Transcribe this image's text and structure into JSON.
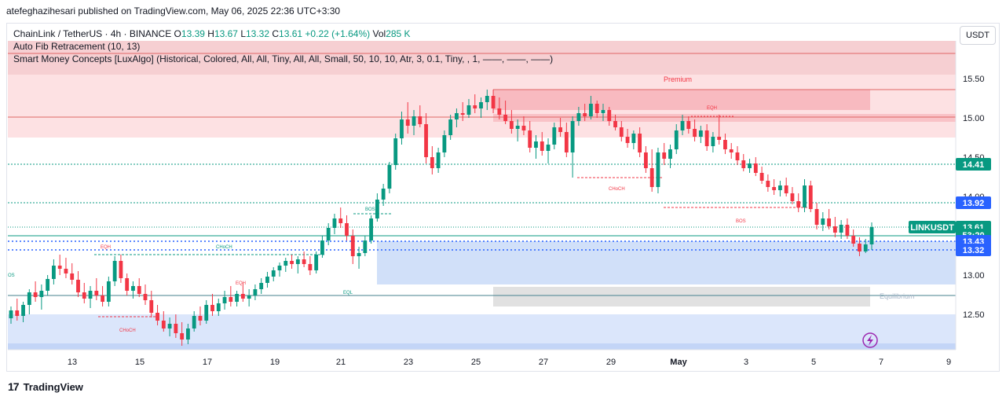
{
  "header": {
    "publisher": "atefeghazihesari published on TradingView.com, May 06, 2025 22:36 UTC+3:30"
  },
  "legend": {
    "symbol": "ChainLink / TetherUS · 4h · BINANCE",
    "o_label": "O",
    "o": "13.39",
    "h_label": "H",
    "h": "13.67",
    "l_label": "L",
    "l": "13.32",
    "c_label": "C",
    "c": "13.61",
    "change": "+0.22 (+1.64%)",
    "vol_label": "Vol",
    "vol": "285 K",
    "indicator1": "Auto Fib Retracement (10, 13)",
    "indicator2": "Smart Money Concepts [LuxAlgo] (Historical, Colored, All, All, Tiny, All, All, Small, 50, 10, 10, Atr, 3, 0.1, Tiny, , 1, ——, ——, ——)"
  },
  "currency_button": "USDT",
  "footer": {
    "brand": "TradingView",
    "logo": "17"
  },
  "colors": {
    "up": "#089981",
    "down": "#f23645",
    "premium": "#f7c9cc",
    "discount": "#c9daf8",
    "equilibrium": "#d9d9d9"
  },
  "chart_data": {
    "type": "candlestick",
    "title": "ChainLink / TetherUS · 4h · BINANCE",
    "ylim": [
      12.05,
      15.98
    ],
    "yticks": [
      "15.50",
      "15.00",
      "14.50",
      "14.00",
      "13.00",
      "12.50"
    ],
    "xticks": [
      "13",
      "15",
      "17",
      "19",
      "21",
      "23",
      "25",
      "27",
      "29",
      "May",
      "3",
      "5",
      "7",
      "9"
    ],
    "price_labels": [
      {
        "text": "14.41",
        "value": 14.41,
        "color": "#089981"
      },
      {
        "text": "13.92",
        "value": 13.92,
        "color": "#2962ff"
      },
      {
        "text": "LINKUSDT",
        "value": 13.61,
        "color": "#089981"
      },
      {
        "text": "13.61",
        "value": 13.61,
        "color": "#089981"
      },
      {
        "text": "53:20",
        "value": 13.51,
        "color": "#089981"
      },
      {
        "text": "13.43",
        "value": 13.43,
        "color": "#2962ff"
      },
      {
        "text": "13.32",
        "value": 13.32,
        "color": "#2962ff"
      }
    ],
    "annotations": [
      "Premium",
      "EQH",
      "CHoCH",
      "BOS",
      "BOS",
      "EQH",
      "CHoCH",
      "EQH",
      "CHoCH",
      "EQL",
      "Equilibrium",
      "OS"
    ],
    "fib_levels": [
      14.41,
      13.92,
      13.32
    ],
    "zones": {
      "premium": [
        15.98,
        14.85
      ],
      "premium_block": [
        15.36,
        15.1
      ],
      "discount": [
        12.5,
        12.05
      ],
      "equilibrium_block": [
        12.85,
        12.6
      ],
      "demand_block": [
        13.43,
        12.88
      ]
    },
    "candles": [
      {
        "o": 12.45,
        "h": 12.6,
        "l": 12.38,
        "c": 12.55
      },
      {
        "o": 12.55,
        "h": 12.7,
        "l": 12.42,
        "c": 12.48
      },
      {
        "o": 12.48,
        "h": 12.66,
        "l": 12.4,
        "c": 12.62
      },
      {
        "o": 12.62,
        "h": 12.82,
        "l": 12.5,
        "c": 12.78
      },
      {
        "o": 12.78,
        "h": 12.92,
        "l": 12.66,
        "c": 12.72
      },
      {
        "o": 12.72,
        "h": 12.88,
        "l": 12.56,
        "c": 12.8
      },
      {
        "o": 12.8,
        "h": 13.0,
        "l": 12.74,
        "c": 12.95
      },
      {
        "o": 12.95,
        "h": 13.2,
        "l": 12.88,
        "c": 13.12
      },
      {
        "o": 13.12,
        "h": 13.26,
        "l": 13.0,
        "c": 13.08
      },
      {
        "o": 13.08,
        "h": 13.22,
        "l": 12.96,
        "c": 13.02
      },
      {
        "o": 13.02,
        "h": 13.15,
        "l": 12.88,
        "c": 12.94
      },
      {
        "o": 12.94,
        "h": 13.05,
        "l": 12.72,
        "c": 12.78
      },
      {
        "o": 12.78,
        "h": 12.9,
        "l": 12.64,
        "c": 12.7
      },
      {
        "o": 12.7,
        "h": 12.86,
        "l": 12.58,
        "c": 12.8
      },
      {
        "o": 12.8,
        "h": 12.96,
        "l": 12.68,
        "c": 12.74
      },
      {
        "o": 12.74,
        "h": 12.86,
        "l": 12.6,
        "c": 12.66
      },
      {
        "o": 12.66,
        "h": 12.98,
        "l": 12.6,
        "c": 12.92
      },
      {
        "o": 12.92,
        "h": 13.24,
        "l": 12.86,
        "c": 13.18
      },
      {
        "o": 13.18,
        "h": 13.26,
        "l": 12.9,
        "c": 12.96
      },
      {
        "o": 12.96,
        "h": 13.02,
        "l": 12.74,
        "c": 12.8
      },
      {
        "o": 12.8,
        "h": 12.92,
        "l": 12.7,
        "c": 12.86
      },
      {
        "o": 12.86,
        "h": 12.96,
        "l": 12.72,
        "c": 12.76
      },
      {
        "o": 12.76,
        "h": 12.88,
        "l": 12.62,
        "c": 12.68
      },
      {
        "o": 12.68,
        "h": 12.8,
        "l": 12.46,
        "c": 12.52
      },
      {
        "o": 12.52,
        "h": 12.62,
        "l": 12.36,
        "c": 12.42
      },
      {
        "o": 12.42,
        "h": 12.54,
        "l": 12.28,
        "c": 12.32
      },
      {
        "o": 12.32,
        "h": 12.46,
        "l": 12.22,
        "c": 12.38
      },
      {
        "o": 12.38,
        "h": 12.5,
        "l": 12.2,
        "c": 12.26
      },
      {
        "o": 12.26,
        "h": 12.4,
        "l": 12.1,
        "c": 12.18
      },
      {
        "o": 12.18,
        "h": 12.38,
        "l": 12.12,
        "c": 12.32
      },
      {
        "o": 12.32,
        "h": 12.54,
        "l": 12.28,
        "c": 12.48
      },
      {
        "o": 12.48,
        "h": 12.6,
        "l": 12.36,
        "c": 12.42
      },
      {
        "o": 12.42,
        "h": 12.68,
        "l": 12.38,
        "c": 12.62
      },
      {
        "o": 12.62,
        "h": 12.76,
        "l": 12.48,
        "c": 12.54
      },
      {
        "o": 12.54,
        "h": 12.7,
        "l": 12.48,
        "c": 12.64
      },
      {
        "o": 12.64,
        "h": 12.8,
        "l": 12.56,
        "c": 12.72
      },
      {
        "o": 12.72,
        "h": 12.86,
        "l": 12.6,
        "c": 12.66
      },
      {
        "o": 12.66,
        "h": 12.8,
        "l": 12.6,
        "c": 12.76
      },
      {
        "o": 12.76,
        "h": 12.9,
        "l": 12.66,
        "c": 12.7
      },
      {
        "o": 12.7,
        "h": 12.82,
        "l": 12.6,
        "c": 12.74
      },
      {
        "o": 12.74,
        "h": 12.88,
        "l": 12.68,
        "c": 12.82
      },
      {
        "o": 12.82,
        "h": 12.96,
        "l": 12.76,
        "c": 12.9
      },
      {
        "o": 12.9,
        "h": 13.04,
        "l": 12.84,
        "c": 12.98
      },
      {
        "o": 12.98,
        "h": 13.1,
        "l": 12.92,
        "c": 13.06
      },
      {
        "o": 13.06,
        "h": 13.16,
        "l": 12.98,
        "c": 13.12
      },
      {
        "o": 13.12,
        "h": 13.22,
        "l": 13.04,
        "c": 13.18
      },
      {
        "o": 13.18,
        "h": 13.26,
        "l": 13.08,
        "c": 13.14
      },
      {
        "o": 13.14,
        "h": 13.24,
        "l": 13.02,
        "c": 13.2
      },
      {
        "o": 13.2,
        "h": 13.3,
        "l": 13.1,
        "c": 13.14
      },
      {
        "o": 13.14,
        "h": 13.24,
        "l": 13.0,
        "c": 13.06
      },
      {
        "o": 13.06,
        "h": 13.3,
        "l": 13.02,
        "c": 13.26
      },
      {
        "o": 13.26,
        "h": 13.5,
        "l": 13.22,
        "c": 13.44
      },
      {
        "o": 13.44,
        "h": 13.66,
        "l": 13.38,
        "c": 13.6
      },
      {
        "o": 13.6,
        "h": 13.78,
        "l": 13.52,
        "c": 13.72
      },
      {
        "o": 13.72,
        "h": 13.86,
        "l": 13.6,
        "c": 13.66
      },
      {
        "o": 13.66,
        "h": 13.76,
        "l": 13.44,
        "c": 13.5
      },
      {
        "o": 13.5,
        "h": 13.58,
        "l": 13.14,
        "c": 13.24
      },
      {
        "o": 13.24,
        "h": 13.36,
        "l": 13.08,
        "c": 13.28
      },
      {
        "o": 13.28,
        "h": 13.5,
        "l": 13.24,
        "c": 13.44
      },
      {
        "o": 13.44,
        "h": 13.76,
        "l": 13.4,
        "c": 13.72
      },
      {
        "o": 13.72,
        "h": 14.04,
        "l": 13.68,
        "c": 13.96
      },
      {
        "o": 13.96,
        "h": 14.16,
        "l": 13.88,
        "c": 14.1
      },
      {
        "o": 14.1,
        "h": 14.44,
        "l": 14.04,
        "c": 14.4
      },
      {
        "o": 14.4,
        "h": 14.8,
        "l": 14.34,
        "c": 14.74
      },
      {
        "o": 14.74,
        "h": 15.08,
        "l": 14.66,
        "c": 14.98
      },
      {
        "o": 14.98,
        "h": 15.2,
        "l": 14.8,
        "c": 14.9
      },
      {
        "o": 14.9,
        "h": 15.1,
        "l": 14.78,
        "c": 15.02
      },
      {
        "o": 15.02,
        "h": 15.16,
        "l": 14.88,
        "c": 14.92
      },
      {
        "o": 14.92,
        "h": 15.06,
        "l": 14.42,
        "c": 14.5
      },
      {
        "o": 14.5,
        "h": 14.64,
        "l": 14.28,
        "c": 14.36
      },
      {
        "o": 14.36,
        "h": 14.62,
        "l": 14.3,
        "c": 14.56
      },
      {
        "o": 14.56,
        "h": 14.84,
        "l": 14.5,
        "c": 14.78
      },
      {
        "o": 14.78,
        "h": 15.04,
        "l": 14.72,
        "c": 14.98
      },
      {
        "o": 14.98,
        "h": 15.12,
        "l": 14.88,
        "c": 15.06
      },
      {
        "o": 15.06,
        "h": 15.2,
        "l": 14.96,
        "c": 15.04
      },
      {
        "o": 15.04,
        "h": 15.24,
        "l": 15.0,
        "c": 15.16
      },
      {
        "o": 15.16,
        "h": 15.3,
        "l": 15.06,
        "c": 15.12
      },
      {
        "o": 15.12,
        "h": 15.26,
        "l": 15.0,
        "c": 15.2
      },
      {
        "o": 15.2,
        "h": 15.36,
        "l": 15.1,
        "c": 15.28
      },
      {
        "o": 15.28,
        "h": 15.36,
        "l": 15.06,
        "c": 15.12
      },
      {
        "o": 15.12,
        "h": 15.26,
        "l": 14.98,
        "c": 15.04
      },
      {
        "o": 15.04,
        "h": 15.22,
        "l": 14.92,
        "c": 14.96
      },
      {
        "o": 14.96,
        "h": 15.1,
        "l": 14.8,
        "c": 14.86
      },
      {
        "o": 14.86,
        "h": 14.98,
        "l": 14.7,
        "c": 14.9
      },
      {
        "o": 14.9,
        "h": 15.02,
        "l": 14.78,
        "c": 14.84
      },
      {
        "o": 14.84,
        "h": 14.96,
        "l": 14.56,
        "c": 14.62
      },
      {
        "o": 14.62,
        "h": 14.78,
        "l": 14.48,
        "c": 14.7
      },
      {
        "o": 14.7,
        "h": 14.82,
        "l": 14.52,
        "c": 14.58
      },
      {
        "o": 14.58,
        "h": 14.74,
        "l": 14.42,
        "c": 14.66
      },
      {
        "o": 14.66,
        "h": 14.94,
        "l": 14.6,
        "c": 14.88
      },
      {
        "o": 14.88,
        "h": 15.0,
        "l": 14.76,
        "c": 14.82
      },
      {
        "o": 14.82,
        "h": 14.94,
        "l": 14.5,
        "c": 14.56
      },
      {
        "o": 14.56,
        "h": 15.02,
        "l": 14.24,
        "c": 14.96
      },
      {
        "o": 14.96,
        "h": 15.14,
        "l": 14.9,
        "c": 15.06
      },
      {
        "o": 15.06,
        "h": 15.18,
        "l": 14.96,
        "c": 15.02
      },
      {
        "o": 15.02,
        "h": 15.28,
        "l": 14.98,
        "c": 15.18
      },
      {
        "o": 15.18,
        "h": 15.22,
        "l": 15.0,
        "c": 15.06
      },
      {
        "o": 15.06,
        "h": 15.18,
        "l": 14.96,
        "c": 15.1
      },
      {
        "o": 15.1,
        "h": 15.14,
        "l": 14.9,
        "c": 14.96
      },
      {
        "o": 14.96,
        "h": 15.04,
        "l": 14.84,
        "c": 14.88
      },
      {
        "o": 14.88,
        "h": 14.96,
        "l": 14.7,
        "c": 14.76
      },
      {
        "o": 14.76,
        "h": 14.86,
        "l": 14.62,
        "c": 14.68
      },
      {
        "o": 14.68,
        "h": 14.84,
        "l": 14.6,
        "c": 14.8
      },
      {
        "o": 14.8,
        "h": 14.88,
        "l": 14.5,
        "c": 14.56
      },
      {
        "o": 14.56,
        "h": 14.64,
        "l": 14.3,
        "c": 14.36
      },
      {
        "o": 14.36,
        "h": 14.6,
        "l": 14.06,
        "c": 14.12
      },
      {
        "o": 14.12,
        "h": 14.62,
        "l": 14.04,
        "c": 14.56
      },
      {
        "o": 14.56,
        "h": 14.68,
        "l": 14.4,
        "c": 14.48
      },
      {
        "o": 14.48,
        "h": 14.66,
        "l": 14.36,
        "c": 14.6
      },
      {
        "o": 14.6,
        "h": 14.92,
        "l": 14.54,
        "c": 14.84
      },
      {
        "o": 14.84,
        "h": 15.04,
        "l": 14.78,
        "c": 14.96
      },
      {
        "o": 14.96,
        "h": 15.02,
        "l": 14.8,
        "c": 14.86
      },
      {
        "o": 14.86,
        "h": 14.98,
        "l": 14.7,
        "c": 14.76
      },
      {
        "o": 14.76,
        "h": 14.9,
        "l": 14.68,
        "c": 14.84
      },
      {
        "o": 14.84,
        "h": 14.92,
        "l": 14.58,
        "c": 14.64
      },
      {
        "o": 14.64,
        "h": 14.82,
        "l": 14.56,
        "c": 14.76
      },
      {
        "o": 14.76,
        "h": 15.04,
        "l": 14.66,
        "c": 14.72
      },
      {
        "o": 14.72,
        "h": 14.8,
        "l": 14.54,
        "c": 14.6
      },
      {
        "o": 14.6,
        "h": 14.68,
        "l": 14.48,
        "c": 14.56
      },
      {
        "o": 14.56,
        "h": 14.64,
        "l": 14.4,
        "c": 14.46
      },
      {
        "o": 14.46,
        "h": 14.54,
        "l": 14.32,
        "c": 14.36
      },
      {
        "o": 14.36,
        "h": 14.48,
        "l": 14.3,
        "c": 14.42
      },
      {
        "o": 14.42,
        "h": 14.5,
        "l": 14.26,
        "c": 14.3
      },
      {
        "o": 14.3,
        "h": 14.38,
        "l": 14.16,
        "c": 14.2
      },
      {
        "o": 14.2,
        "h": 14.28,
        "l": 14.06,
        "c": 14.12
      },
      {
        "o": 14.12,
        "h": 14.22,
        "l": 14.02,
        "c": 14.08
      },
      {
        "o": 14.08,
        "h": 14.2,
        "l": 14.0,
        "c": 14.14
      },
      {
        "o": 14.14,
        "h": 14.24,
        "l": 14.0,
        "c": 14.04
      },
      {
        "o": 14.04,
        "h": 14.12,
        "l": 13.9,
        "c": 13.94
      },
      {
        "o": 13.94,
        "h": 14.04,
        "l": 13.8,
        "c": 13.86
      },
      {
        "o": 13.86,
        "h": 14.22,
        "l": 13.8,
        "c": 14.14
      },
      {
        "o": 14.14,
        "h": 14.2,
        "l": 13.8,
        "c": 13.84
      },
      {
        "o": 13.84,
        "h": 13.92,
        "l": 13.58,
        "c": 13.64
      },
      {
        "o": 13.64,
        "h": 13.8,
        "l": 13.56,
        "c": 13.72
      },
      {
        "o": 13.72,
        "h": 13.84,
        "l": 13.58,
        "c": 13.62
      },
      {
        "o": 13.62,
        "h": 13.74,
        "l": 13.48,
        "c": 13.54
      },
      {
        "o": 13.54,
        "h": 13.7,
        "l": 13.46,
        "c": 13.64
      },
      {
        "o": 13.64,
        "h": 13.72,
        "l": 13.46,
        "c": 13.5
      },
      {
        "o": 13.5,
        "h": 13.58,
        "l": 13.36,
        "c": 13.4
      },
      {
        "o": 13.4,
        "h": 13.48,
        "l": 13.24,
        "c": 13.3
      },
      {
        "o": 13.3,
        "h": 13.46,
        "l": 13.28,
        "c": 13.39
      },
      {
        "o": 13.39,
        "h": 13.67,
        "l": 13.32,
        "c": 13.61
      }
    ]
  }
}
